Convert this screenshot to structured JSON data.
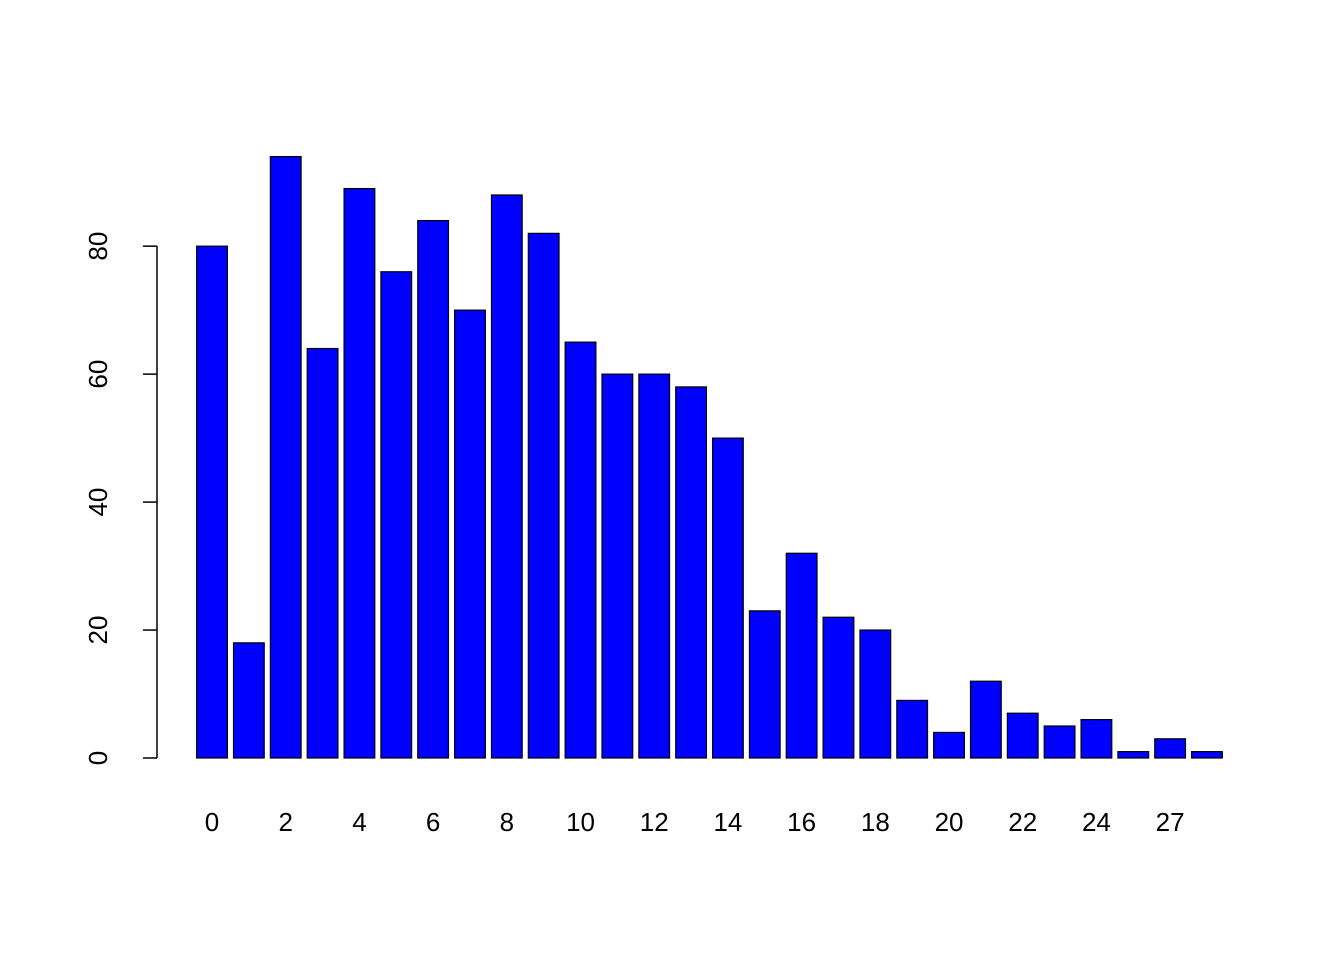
{
  "chart_data": {
    "type": "bar",
    "categories": [
      0,
      null,
      2,
      null,
      4,
      null,
      6,
      null,
      8,
      null,
      10,
      null,
      12,
      null,
      14,
      null,
      16,
      null,
      18,
      null,
      20,
      null,
      22,
      null,
      24,
      null,
      27,
      null
    ],
    "values": [
      80,
      18,
      94,
      64,
      89,
      76,
      84,
      70,
      88,
      82,
      65,
      60,
      60,
      58,
      50,
      23,
      32,
      22,
      20,
      9,
      4,
      12,
      7,
      5,
      6,
      1,
      3,
      1
    ],
    "color": "#0000ff",
    "ylim": [
      0,
      98
    ],
    "yticks": [
      0,
      20,
      40,
      60,
      80
    ],
    "grid": false
  }
}
